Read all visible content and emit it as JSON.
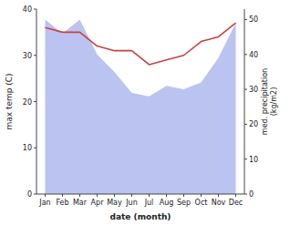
{
  "chart_data": {
    "type": "line",
    "xlabel": "date (month)",
    "ylabel": "max temp (C)",
    "y2label": "med. precipitation\n(kg/m2)",
    "categories": [
      "Jan",
      "Feb",
      "Mar",
      "Apr",
      "May",
      "Jun",
      "Jul",
      "Aug",
      "Sep",
      "Oct",
      "Nov",
      "Dec"
    ],
    "series": [
      {
        "type": "area",
        "axis": "y2",
        "color": "#bbc4f0",
        "values": [
          50,
          46,
          50,
          40,
          35,
          29,
          28,
          31,
          30,
          32,
          39,
          49
        ]
      },
      {
        "type": "line",
        "color": "#c94040",
        "values": [
          36,
          35,
          35,
          32,
          31,
          31,
          28,
          29,
          30,
          33,
          34,
          37
        ]
      }
    ],
    "ylim": [
      0,
      40
    ],
    "yticks": [
      0,
      10,
      20,
      30,
      40
    ],
    "y2lim": [
      0,
      53
    ],
    "y2ticks": [
      0,
      10,
      20,
      30,
      40,
      50
    ],
    "grid": false
  }
}
